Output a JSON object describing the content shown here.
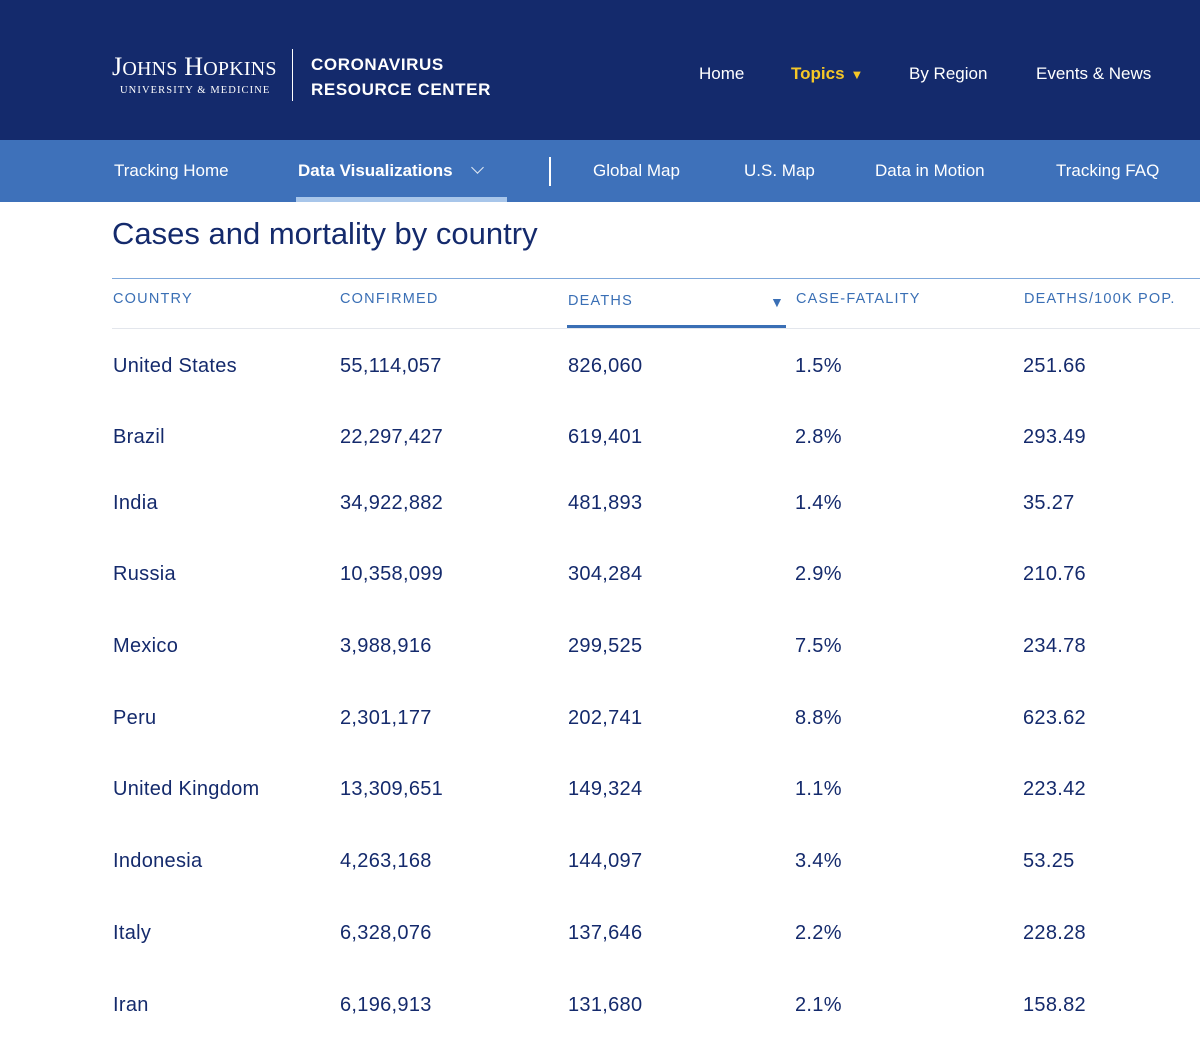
{
  "header": {
    "logo_main": "Johns Hopkins",
    "logo_sub": "UNIVERSITY & MEDICINE",
    "site_title_line1": "CORONAVIRUS",
    "site_title_line2": "RESOURCE CENTER",
    "nav": {
      "home": "Home",
      "topics": "Topics",
      "topics_caret": "▼",
      "by_region": "By Region",
      "events_news": "Events & News"
    }
  },
  "subnav": {
    "tracking_home": "Tracking Home",
    "data_visualizations": "Data Visualizations",
    "global_map": "Global Map",
    "us_map": "U.S. Map",
    "data_in_motion": "Data in Motion",
    "tracking_faq": "Tracking FAQ"
  },
  "page": {
    "title": "Cases and mortality by country"
  },
  "table": {
    "sort_indicator": "▼",
    "headers": {
      "country": "COUNTRY",
      "confirmed": "CONFIRMED",
      "deaths": "DEATHS",
      "case_fatality": "CASE-FATALITY",
      "deaths_per_100k": "DEATHS/100K POP."
    },
    "rows": [
      [
        "United States",
        "55,114,057",
        "826,060",
        "1.5%",
        "251.66"
      ],
      [
        "Brazil",
        "22,297,427",
        "619,401",
        "2.8%",
        "293.49"
      ],
      [
        "India",
        "34,922,882",
        "481,893",
        "1.4%",
        "35.27"
      ],
      [
        "Russia",
        "10,358,099",
        "304,284",
        "2.9%",
        "210.76"
      ],
      [
        "Mexico",
        "3,988,916",
        "299,525",
        "7.5%",
        "234.78"
      ],
      [
        "Peru",
        "2,301,177",
        "202,741",
        "8.8%",
        "623.62"
      ],
      [
        "United Kingdom",
        "13,309,651",
        "149,324",
        "1.1%",
        "223.42"
      ],
      [
        "Indonesia",
        "4,263,168",
        "144,097",
        "3.4%",
        "53.25"
      ],
      [
        "Italy",
        "6,328,076",
        "137,646",
        "2.2%",
        "228.28"
      ],
      [
        "Iran",
        "6,196,913",
        "131,680",
        "2.1%",
        "158.82"
      ]
    ]
  },
  "colors": {
    "header_bg": "#142a6c",
    "subnav_bg": "#3e71ba",
    "accent_yellow": "#f5c727",
    "table_header_text": "#3a6fb5",
    "body_text": "#142a6c"
  }
}
